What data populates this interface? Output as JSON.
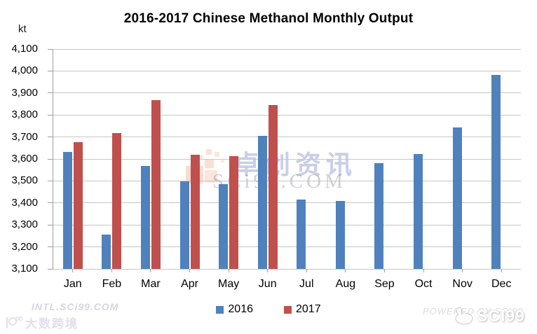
{
  "title": "2016-2017 Chinese Methanol Monthly Output",
  "unit_label": "kt",
  "chart_data": {
    "type": "bar",
    "title": "2016-2017 Chinese Methanol Monthly Output",
    "xlabel": "",
    "ylabel": "kt",
    "ylim": [
      3100,
      4100
    ],
    "tick_step": 100,
    "grid": true,
    "legend_position": "bottom",
    "y_tick_labels": [
      "4,100",
      "4,000",
      "3,900",
      "3,800",
      "3,700",
      "3,600",
      "3,500",
      "3,400",
      "3,300",
      "3,200",
      "3,100"
    ],
    "categories": [
      "Jan",
      "Feb",
      "Mar",
      "Apr",
      "May",
      "Jun",
      "Jul",
      "Aug",
      "Sep",
      "Oct",
      "Nov",
      "Dec"
    ],
    "series": [
      {
        "name": "2016",
        "color": "#4F81BD",
        "values": [
          3633,
          3255,
          3568,
          3497,
          3484,
          3705,
          3415,
          3408,
          3580,
          3622,
          3744,
          3982
        ]
      },
      {
        "name": "2017",
        "color": "#C0504D",
        "values": [
          3678,
          3719,
          3869,
          3620,
          3614,
          3844,
          null,
          null,
          null,
          null,
          null,
          null
        ]
      }
    ]
  },
  "legend": {
    "items": [
      {
        "label": "2016",
        "color": "#4F81BD"
      },
      {
        "label": "2017",
        "color": "#C0504D"
      }
    ]
  },
  "watermarks": {
    "center_chinese": "卓创资讯",
    "center_domain": "SCi99.COM",
    "bottom_left_text": "INTL.SCi99.COM",
    "bottom_left_logo_text": "大数跨境",
    "bottom_right_text": "POWERED BY SCI99",
    "bottom_right_logo_text": "SCI99"
  },
  "colors": {
    "background": "#ffffff",
    "gridline": "#c6c6c6",
    "axis": "#9e9e9e",
    "title_text": "#000000",
    "series_2016": "#4F81BD",
    "series_2017": "#C0504D",
    "watermark_orange": "#eb8a5f",
    "watermark_blue_text": "rgba(125,140,200,0.42)"
  }
}
